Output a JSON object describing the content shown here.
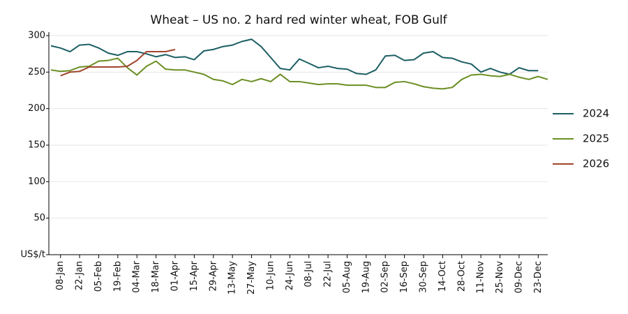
{
  "chart_data": {
    "type": "line",
    "title": "Wheat – US no. 2 hard red winter wheat, FOB Gulf",
    "categories": [
      null,
      "08-Jan",
      null,
      "22-Jan",
      null,
      "05-Feb",
      null,
      "19-Feb",
      null,
      "04-Mar",
      null,
      "18-Mar",
      null,
      "01-Apr",
      null,
      "15-Apr",
      null,
      "29-Apr",
      null,
      "13-May",
      null,
      "27-May",
      null,
      "10-Jun",
      null,
      "24-Jun",
      null,
      "08-Jul",
      null,
      "22-Jul",
      null,
      "05-Aug",
      null,
      "19-Aug",
      null,
      "02-Sep",
      null,
      "16-Sep",
      null,
      "30-Sep",
      null,
      "14-Oct",
      null,
      "28-Oct",
      null,
      "11-Nov",
      null,
      "25-Nov",
      null,
      "09-Dec",
      null,
      "23-Dec",
      null
    ],
    "series": [
      {
        "name": "2024",
        "color": "#1b5e63",
        "values": [
          286,
          283,
          278,
          287,
          288,
          283,
          276,
          273,
          278,
          278,
          275,
          271,
          274,
          270,
          271,
          267,
          279,
          281,
          285,
          287,
          292,
          295,
          285,
          270,
          255,
          253,
          268,
          262,
          256,
          258,
          255,
          254,
          248,
          247,
          253,
          272,
          273,
          266,
          267,
          276,
          278,
          270,
          269,
          264,
          261,
          250,
          255,
          250,
          247,
          256,
          252,
          252,
          null
        ]
      },
      {
        "name": "2025",
        "color": "#6b8e23",
        "values": [
          253,
          251,
          252,
          257,
          258,
          265,
          266,
          269,
          256,
          246,
          258,
          265,
          254,
          253,
          253,
          250,
          247,
          240,
          238,
          233,
          240,
          237,
          241,
          237,
          247,
          237,
          237,
          235,
          233,
          234,
          234,
          232,
          232,
          232,
          229,
          229,
          236,
          237,
          234,
          230,
          228,
          227,
          229,
          240,
          246,
          247,
          245,
          244,
          247,
          243,
          240,
          244,
          240
        ]
      },
      {
        "name": "2026",
        "color": "#a0442c",
        "values": [
          null,
          245,
          250,
          251,
          257,
          257,
          257,
          257,
          258,
          266,
          278,
          278,
          278,
          281,
          null,
          null,
          null,
          null,
          null,
          null,
          null,
          null,
          null,
          null,
          null,
          null,
          null,
          null,
          null,
          null,
          null,
          null,
          null,
          null,
          null,
          null,
          null,
          null,
          null,
          null,
          null,
          null,
          null,
          null,
          null,
          null,
          null,
          null,
          null,
          null,
          null,
          null,
          null
        ]
      }
    ],
    "ylim": [
      0,
      300
    ],
    "yticks": [
      {
        "value": 0,
        "label": "US$/t"
      },
      50,
      100,
      150,
      200,
      250,
      300
    ],
    "grid": true,
    "legend": "right"
  }
}
